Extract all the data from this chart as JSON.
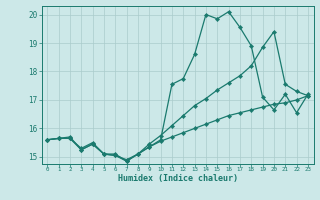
{
  "xlabel": "Humidex (Indice chaleur)",
  "bg_color": "#cce8e8",
  "line_color": "#1a7a6e",
  "grid_color": "#aacccc",
  "xlim": [
    -0.5,
    23.5
  ],
  "ylim": [
    14.75,
    20.3
  ],
  "yticks": [
    15,
    16,
    17,
    18,
    19,
    20
  ],
  "xticks": [
    0,
    1,
    2,
    3,
    4,
    5,
    6,
    7,
    8,
    9,
    10,
    11,
    12,
    13,
    14,
    15,
    16,
    17,
    18,
    19,
    20,
    21,
    22,
    23
  ],
  "series1_x": [
    0,
    1,
    2,
    3,
    4,
    5,
    6,
    7,
    8,
    9,
    10,
    11,
    12,
    13,
    14,
    15,
    16,
    17,
    18,
    19,
    20,
    21,
    22,
    23
  ],
  "series1_y": [
    15.6,
    15.65,
    15.7,
    15.25,
    15.45,
    15.1,
    15.1,
    14.85,
    15.1,
    15.35,
    15.55,
    15.7,
    15.85,
    16.0,
    16.15,
    16.3,
    16.45,
    16.55,
    16.65,
    16.75,
    16.85,
    16.9,
    17.0,
    17.15
  ],
  "series2_x": [
    0,
    1,
    2,
    3,
    4,
    5,
    6,
    7,
    8,
    9,
    10,
    11,
    12,
    13,
    14,
    15,
    16,
    17,
    18,
    19,
    20,
    21,
    22,
    23
  ],
  "series2_y": [
    15.6,
    15.65,
    15.65,
    15.3,
    15.5,
    15.1,
    15.05,
    14.9,
    15.1,
    15.45,
    15.75,
    16.1,
    16.45,
    16.8,
    17.05,
    17.35,
    17.6,
    17.85,
    18.2,
    18.85,
    19.4,
    17.55,
    17.3,
    17.15
  ],
  "series3_x": [
    0,
    1,
    2,
    3,
    4,
    5,
    6,
    7,
    8,
    9,
    10,
    11,
    12,
    13,
    14,
    15,
    16,
    17,
    18,
    19,
    20,
    21,
    22,
    23
  ],
  "series3_y": [
    15.6,
    15.65,
    15.65,
    15.25,
    15.45,
    15.1,
    15.05,
    14.85,
    15.1,
    15.35,
    15.6,
    17.55,
    17.75,
    18.6,
    20.0,
    19.85,
    20.1,
    19.55,
    18.9,
    17.1,
    16.65,
    17.2,
    16.55,
    17.2
  ]
}
